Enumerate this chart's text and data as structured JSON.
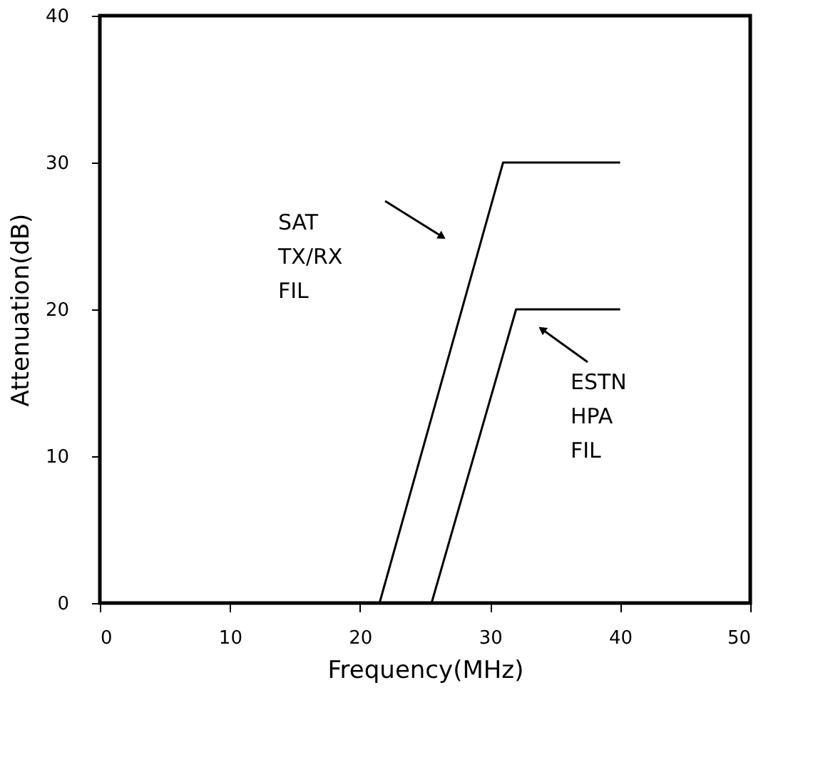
{
  "chart_data": {
    "type": "line",
    "xlabel": "Frequency(MHz)",
    "ylabel": "Attenuation(dB)",
    "series": [
      {
        "color": "#000000",
        "x": [
          21.5,
          31,
          40
        ],
        "values": [
          0,
          30,
          30
        ]
      },
      {
        "color": "#000000",
        "x": [
          25.5,
          32,
          40
        ],
        "values": [
          0,
          20,
          20
        ]
      }
    ],
    "xlim": [
      0,
      50
    ],
    "xticks": [
      0,
      10,
      20,
      30,
      40,
      50
    ],
    "ylim": [
      0,
      40
    ],
    "yticks": [
      0,
      10,
      20,
      30,
      40
    ],
    "grid": false,
    "marker": "none",
    "line_style": "solid",
    "annotations": [
      "SAT\nTX/RX\nFIL",
      "ESTN\nHPA\nFIL"
    ]
  }
}
